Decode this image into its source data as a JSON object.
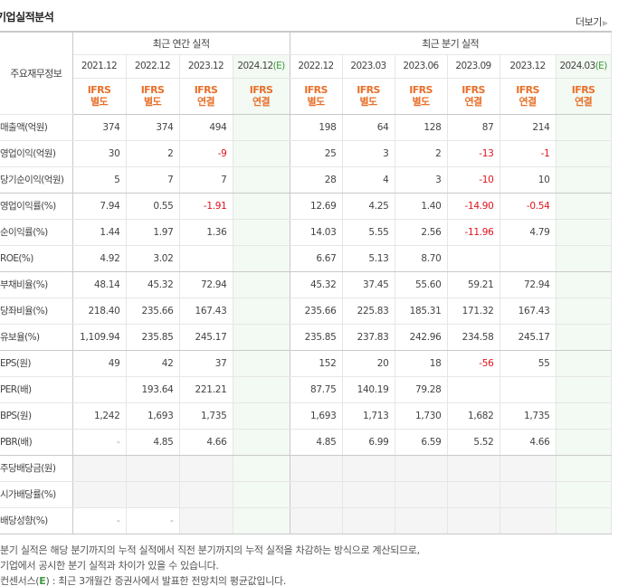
{
  "header": {
    "title": "기업실적분석",
    "more_label": "더보기",
    "more_icon": "triangle-right-icon"
  },
  "table": {
    "corner_label": "주요재무정보",
    "groups": [
      {
        "label": "최근 연간 실적",
        "span": 4
      },
      {
        "label": "최근 분기 실적",
        "span": 6
      }
    ],
    "columns": [
      {
        "period": "2021.12",
        "estimate": false,
        "std": "IFRS",
        "type": "별도"
      },
      {
        "period": "2022.12",
        "estimate": false,
        "std": "IFRS",
        "type": "별도"
      },
      {
        "period": "2023.12",
        "estimate": false,
        "std": "IFRS",
        "type": "연결"
      },
      {
        "period": "2024.12",
        "estimate": true,
        "estimate_mark": "(E)",
        "std": "IFRS",
        "type": "연결"
      },
      {
        "period": "2022.12",
        "estimate": false,
        "std": "IFRS",
        "type": "별도"
      },
      {
        "period": "2023.03",
        "estimate": false,
        "std": "IFRS",
        "type": "별도"
      },
      {
        "period": "2023.06",
        "estimate": false,
        "std": "IFRS",
        "type": "별도"
      },
      {
        "period": "2023.09",
        "estimate": false,
        "std": "IFRS",
        "type": "연결"
      },
      {
        "period": "2023.12",
        "estimate": false,
        "std": "IFRS",
        "type": "연결"
      },
      {
        "period": "2024.03",
        "estimate": true,
        "estimate_mark": "(E)",
        "std": "IFRS",
        "type": "연결"
      }
    ],
    "rows": [
      {
        "label": "매출액(억원)",
        "values": [
          "374",
          "374",
          "494",
          "",
          "198",
          "64",
          "128",
          "87",
          "214",
          ""
        ]
      },
      {
        "label": "영업이익(억원)",
        "values": [
          "30",
          "2",
          "-9",
          "",
          "25",
          "3",
          "2",
          "-13",
          "-1",
          ""
        ]
      },
      {
        "label": "당기순이익(억원)",
        "values": [
          "5",
          "7",
          "7",
          "",
          "28",
          "4",
          "3",
          "-10",
          "10",
          ""
        ]
      },
      {
        "label": "영업이익률(%)",
        "values": [
          "7.94",
          "0.55",
          "-1.91",
          "",
          "12.69",
          "4.25",
          "1.40",
          "-14.90",
          "-0.54",
          ""
        ]
      },
      {
        "label": "순이익률(%)",
        "values": [
          "1.44",
          "1.97",
          "1.36",
          "",
          "14.03",
          "5.55",
          "2.56",
          "-11.96",
          "4.79",
          ""
        ]
      },
      {
        "label": "ROE(%)",
        "values": [
          "4.92",
          "3.02",
          "",
          "",
          "6.67",
          "5.13",
          "8.70",
          "",
          "",
          ""
        ]
      },
      {
        "label": "부채비율(%)",
        "values": [
          "48.14",
          "45.32",
          "72.94",
          "",
          "45.32",
          "37.45",
          "55.60",
          "59.21",
          "72.94",
          ""
        ]
      },
      {
        "label": "당좌비율(%)",
        "values": [
          "218.40",
          "235.66",
          "167.43",
          "",
          "235.66",
          "225.83",
          "185.31",
          "171.32",
          "167.43",
          ""
        ]
      },
      {
        "label": "유보율(%)",
        "values": [
          "1,109.94",
          "235.85",
          "245.17",
          "",
          "235.85",
          "237.83",
          "242.96",
          "234.58",
          "245.17",
          ""
        ]
      },
      {
        "label": "EPS(원)",
        "values": [
          "49",
          "42",
          "37",
          "",
          "152",
          "20",
          "18",
          "-56",
          "55",
          ""
        ]
      },
      {
        "label": "PER(배)",
        "values": [
          "",
          "193.64",
          "221.21",
          "",
          "87.75",
          "140.19",
          "79.28",
          "",
          "",
          ""
        ]
      },
      {
        "label": "BPS(원)",
        "values": [
          "1,242",
          "1,693",
          "1,735",
          "",
          "1,693",
          "1,713",
          "1,730",
          "1,682",
          "1,735",
          ""
        ]
      },
      {
        "label": "PBR(배)",
        "values": [
          "-",
          "4.85",
          "4.66",
          "",
          "4.85",
          "6.99",
          "6.59",
          "5.52",
          "4.66",
          ""
        ]
      },
      {
        "label": "주당배당금(원)",
        "values": [
          "",
          "",
          "",
          "",
          "",
          "",
          "",
          "",
          "",
          ""
        ]
      },
      {
        "label": "시가배당률(%)",
        "values": [
          "",
          "",
          "",
          "",
          "",
          "",
          "",
          "",
          "",
          ""
        ]
      },
      {
        "label": "배당성향(%)",
        "values": [
          "-",
          "-",
          "",
          "",
          "",
          "",
          "",
          "",
          "",
          ""
        ]
      }
    ]
  },
  "notes": {
    "line1": "분기 실적은 해당 분기까지의 누적 실적에서 직전 분기까지의 누적 실적을 차감하는 방식으로 계산되므로,",
    "line2": "기업에서 공시한 분기 실적과 차이가 있을 수 있습니다.",
    "line3_prefix": "컨센서스(",
    "line3_mark": "E",
    "line3_suffix": ") : 최근 3개월간 증권사에서 발표한 전망치의 평균값입니다."
  },
  "colors": {
    "negative": "#e0121b",
    "ifrs_orange": "#e8702a",
    "estimate_bg": "#f3f9f3",
    "estimate_green": "#3d9a3d"
  }
}
